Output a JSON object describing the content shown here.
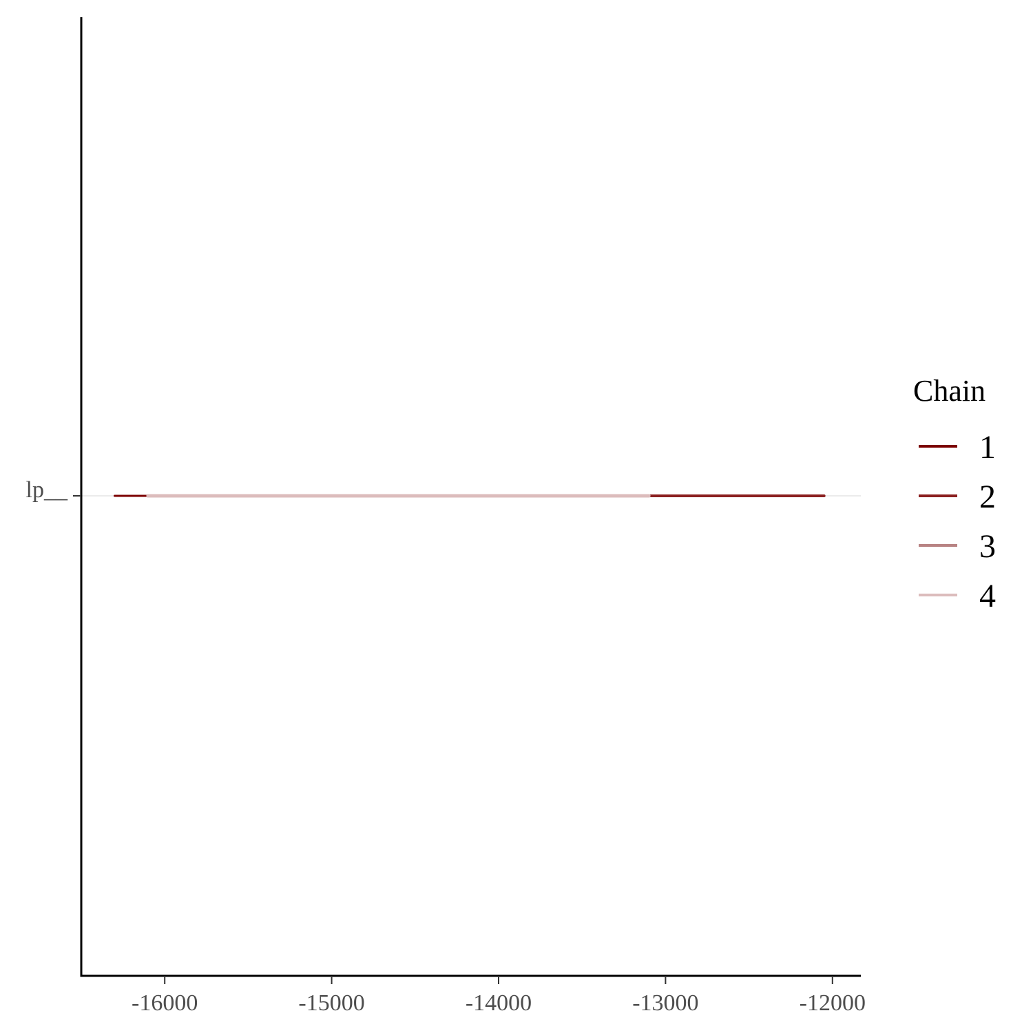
{
  "chart_data": {
    "type": "line",
    "title": "",
    "xlabel": "",
    "ylabel": "",
    "xlim": [
      -16500,
      -11830
    ],
    "x_ticks": [
      -16000,
      -15000,
      -14000,
      -13000,
      -12000
    ],
    "x_tick_labels": [
      "-16000",
      "-15000",
      "-14000",
      "-13000",
      "-12000"
    ],
    "y_categories": [
      "lp__"
    ],
    "grid": "horizontal reference line at lp__",
    "legend": {
      "title": "Chain",
      "placement": "right"
    },
    "series": [
      {
        "name": "1",
        "color": "#7b0000",
        "x_range": [
          -16300,
          -12050
        ]
      },
      {
        "name": "2",
        "color": "#8b2020",
        "x_range": [
          -16100,
          -12050
        ]
      },
      {
        "name": "3",
        "color": "#b88383",
        "x_range": [
          -16100,
          -13100
        ]
      },
      {
        "name": "4",
        "color": "#dcbcbc",
        "x_range": [
          -16100,
          -13100
        ]
      }
    ]
  }
}
